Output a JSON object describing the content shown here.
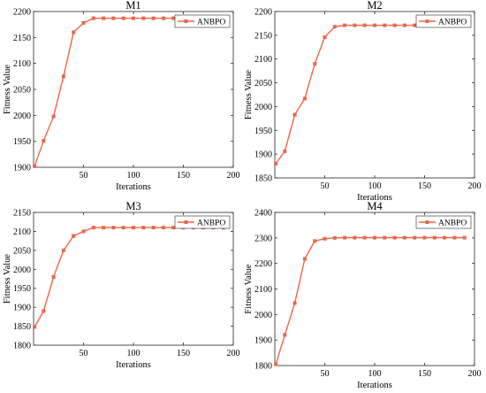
{
  "figure": {
    "background": "#ffffff"
  },
  "chart_data": [
    {
      "type": "line",
      "title": "M1",
      "xlabel": "Iterations",
      "ylabel": "Fitness Value",
      "xlim": [
        0,
        200
      ],
      "ylim": [
        1900,
        2200
      ],
      "xticks": [
        50,
        100,
        150,
        200
      ],
      "yticks": [
        1900,
        1950,
        2000,
        2050,
        2100,
        2150,
        2200
      ],
      "grid": false,
      "legend": "top-right",
      "series": [
        {
          "name": "ANBPO",
          "color": "#e8674a",
          "marker": "square",
          "x": [
            1,
            10,
            20,
            30,
            40,
            50,
            60,
            70,
            80,
            90,
            100,
            110,
            120,
            130,
            140,
            150,
            160,
            170,
            180,
            190
          ],
          "y": [
            1902,
            1951,
            1998,
            2075,
            2160,
            2178,
            2187,
            2187,
            2187,
            2187,
            2187,
            2187,
            2187,
            2187,
            2187,
            2187,
            2187,
            2187,
            2187,
            2187
          ]
        }
      ]
    },
    {
      "type": "line",
      "title": "M2",
      "xlabel": "Iterations",
      "ylabel": "Fitness Value",
      "xlim": [
        0,
        200
      ],
      "ylim": [
        1850,
        2200
      ],
      "xticks": [
        50,
        100,
        150,
        200
      ],
      "yticks": [
        1850,
        1900,
        1950,
        2000,
        2050,
        2100,
        2150,
        2200
      ],
      "grid": false,
      "legend": "top-right",
      "series": [
        {
          "name": "ANBPO",
          "color": "#e8674a",
          "marker": "square",
          "x": [
            1,
            10,
            20,
            30,
            40,
            50,
            60,
            70,
            80,
            90,
            100,
            110,
            120,
            130,
            140,
            150,
            160,
            170,
            180,
            190
          ],
          "y": [
            1880,
            1906,
            1983,
            2017,
            2090,
            2146,
            2168,
            2171,
            2171,
            2171,
            2171,
            2171,
            2171,
            2171,
            2171,
            2171,
            2171,
            2171,
            2171,
            2171
          ]
        }
      ]
    },
    {
      "type": "line",
      "title": "M3",
      "xlabel": "Iterations",
      "ylabel": "Fitness Value",
      "xlim": [
        0,
        200
      ],
      "ylim": [
        1800,
        2150
      ],
      "xticks": [
        50,
        100,
        150,
        200
      ],
      "yticks": [
        1800,
        1850,
        1900,
        1950,
        2000,
        2050,
        2100,
        2150
      ],
      "grid": false,
      "legend": "top-right",
      "series": [
        {
          "name": "ANBPO",
          "color": "#e8674a",
          "marker": "square",
          "x": [
            1,
            10,
            20,
            30,
            40,
            50,
            60,
            70,
            80,
            90,
            100,
            110,
            120,
            130,
            140,
            150,
            160,
            170,
            180,
            190
          ],
          "y": [
            1848,
            1890,
            1980,
            2050,
            2088,
            2100,
            2110,
            2110,
            2110,
            2110,
            2110,
            2110,
            2110,
            2110,
            2110,
            2110,
            2110,
            2110,
            2110,
            2110
          ]
        }
      ]
    },
    {
      "type": "line",
      "title": "M4",
      "xlabel": "Iterations",
      "ylabel": "Fitness Value",
      "xlim": [
        0,
        200
      ],
      "ylim": [
        1800,
        2400
      ],
      "xticks": [
        50,
        100,
        150,
        200
      ],
      "yticks": [
        1800,
        1900,
        2000,
        2100,
        2200,
        2300,
        2400
      ],
      "grid": false,
      "legend": "top-right",
      "series": [
        {
          "name": "ANBPO",
          "color": "#e8674a",
          "marker": "square",
          "x": [
            1,
            10,
            20,
            30,
            40,
            50,
            60,
            70,
            80,
            90,
            100,
            110,
            120,
            130,
            140,
            150,
            160,
            170,
            180,
            190
          ],
          "y": [
            1805,
            1920,
            2045,
            2218,
            2288,
            2297,
            2300,
            2301,
            2301,
            2301,
            2301,
            2301,
            2301,
            2301,
            2301,
            2301,
            2301,
            2301,
            2301,
            2301
          ]
        }
      ]
    }
  ]
}
